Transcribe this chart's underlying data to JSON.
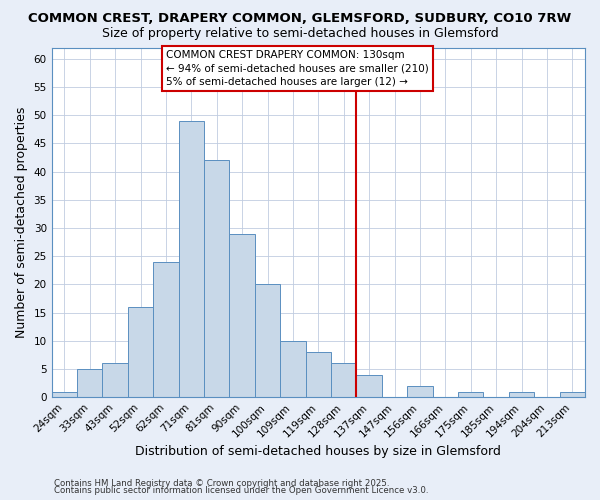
{
  "title1": "COMMON CREST, DRAPERY COMMON, GLEMSFORD, SUDBURY, CO10 7RW",
  "title2": "Size of property relative to semi-detached houses in Glemsford",
  "xlabel": "Distribution of semi-detached houses by size in Glemsford",
  "ylabel": "Number of semi-detached properties",
  "footnote1": "Contains HM Land Registry data © Crown copyright and database right 2025.",
  "footnote2": "Contains public sector information licensed under the Open Government Licence v3.0.",
  "categories": [
    "24sqm",
    "33sqm",
    "43sqm",
    "52sqm",
    "62sqm",
    "71sqm",
    "81sqm",
    "90sqm",
    "100sqm",
    "109sqm",
    "119sqm",
    "128sqm",
    "137sqm",
    "147sqm",
    "156sqm",
    "166sqm",
    "175sqm",
    "185sqm",
    "194sqm",
    "204sqm",
    "213sqm"
  ],
  "values": [
    1,
    5,
    6,
    16,
    24,
    49,
    42,
    29,
    20,
    10,
    8,
    6,
    4,
    0,
    2,
    0,
    1,
    0,
    1,
    0,
    1
  ],
  "bar_color": "#c8d8e8",
  "bar_edge_color": "#5a8fc0",
  "vline_index": 11.5,
  "vline_color": "#cc0000",
  "annotation_title": "COMMON CREST DRAPERY COMMON: 130sqm",
  "annotation_line2": "← 94% of semi-detached houses are smaller (210)",
  "annotation_line3": "5% of semi-detached houses are larger (12) →",
  "ylim": [
    0,
    62
  ],
  "yticks": [
    0,
    5,
    10,
    15,
    20,
    25,
    30,
    35,
    40,
    45,
    50,
    55,
    60
  ],
  "bg_color": "#e8eef8",
  "plot_bg_color": "#ffffff",
  "grid_color": "#c0cce0"
}
